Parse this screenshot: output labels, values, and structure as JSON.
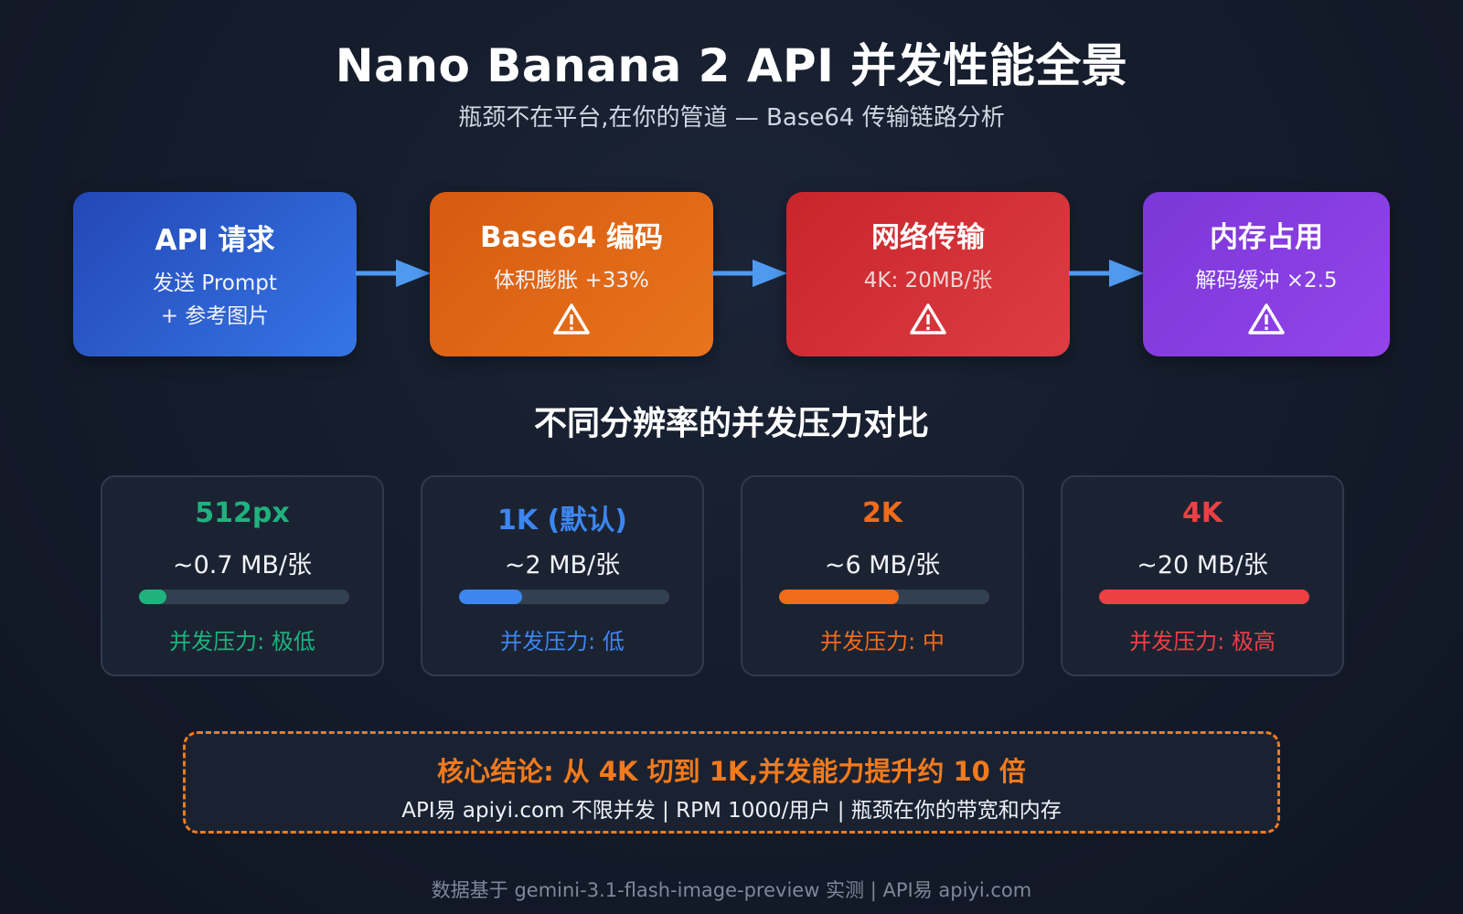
{
  "header": {
    "title": "Nano Banana 2 API 并发性能全景",
    "subtitle": "瓶颈不在平台,在你的管道 — Base64 传输链路分析"
  },
  "flow": [
    {
      "title": "API 请求",
      "desc": "发送 Prompt\n+ 参考图片",
      "warning": false,
      "icon": "none"
    },
    {
      "title": "Base64 编码",
      "desc": "体积膨胀 +33%",
      "warning": true,
      "icon": "warning-icon"
    },
    {
      "title": "网络传输",
      "desc": "4K: 20MB/张",
      "warning": true,
      "icon": "warning-icon"
    },
    {
      "title": "内存占用",
      "desc": "解码缓冲 ×2.5",
      "warning": true,
      "icon": "warning-icon"
    }
  ],
  "flow_colors": {
    "api": "#2f63d9",
    "base64": "#e0691a",
    "network": "#d4343a",
    "memory": "#8b40e4",
    "arrow": "#4f9af0"
  },
  "section_title": "不同分辨率的并发压力对比",
  "resolutions": [
    {
      "label": "512px",
      "size": "~0.7 MB/张",
      "pressure": "并发压力: 极低",
      "level": 0.13,
      "color": "#1fb27d"
    },
    {
      "label": "1K (默认)",
      "size": "~2 MB/张",
      "pressure": "并发压力: 低",
      "level": 0.3,
      "color": "#3d86ef"
    },
    {
      "label": "2K",
      "size": "~6 MB/张",
      "pressure": "并发压力: 中",
      "level": 0.57,
      "color": "#f06c1b"
    },
    {
      "label": "4K",
      "size": "~20 MB/张",
      "pressure": "并发压力: 极高",
      "level": 1.0,
      "color": "#ec4045"
    }
  ],
  "conclusion": {
    "headline": "核心结论: 从 4K 切到 1K,并发能力提升约 10 倍",
    "detail": "API易 apiyi.com 不限并发 | RPM 1000/用户 | 瓶颈在你的带宽和内存",
    "border_color": "#f07a1f"
  },
  "footer": "数据基于 gemini-3.1-flash-image-preview 实测 | API易 apiyi.com"
}
